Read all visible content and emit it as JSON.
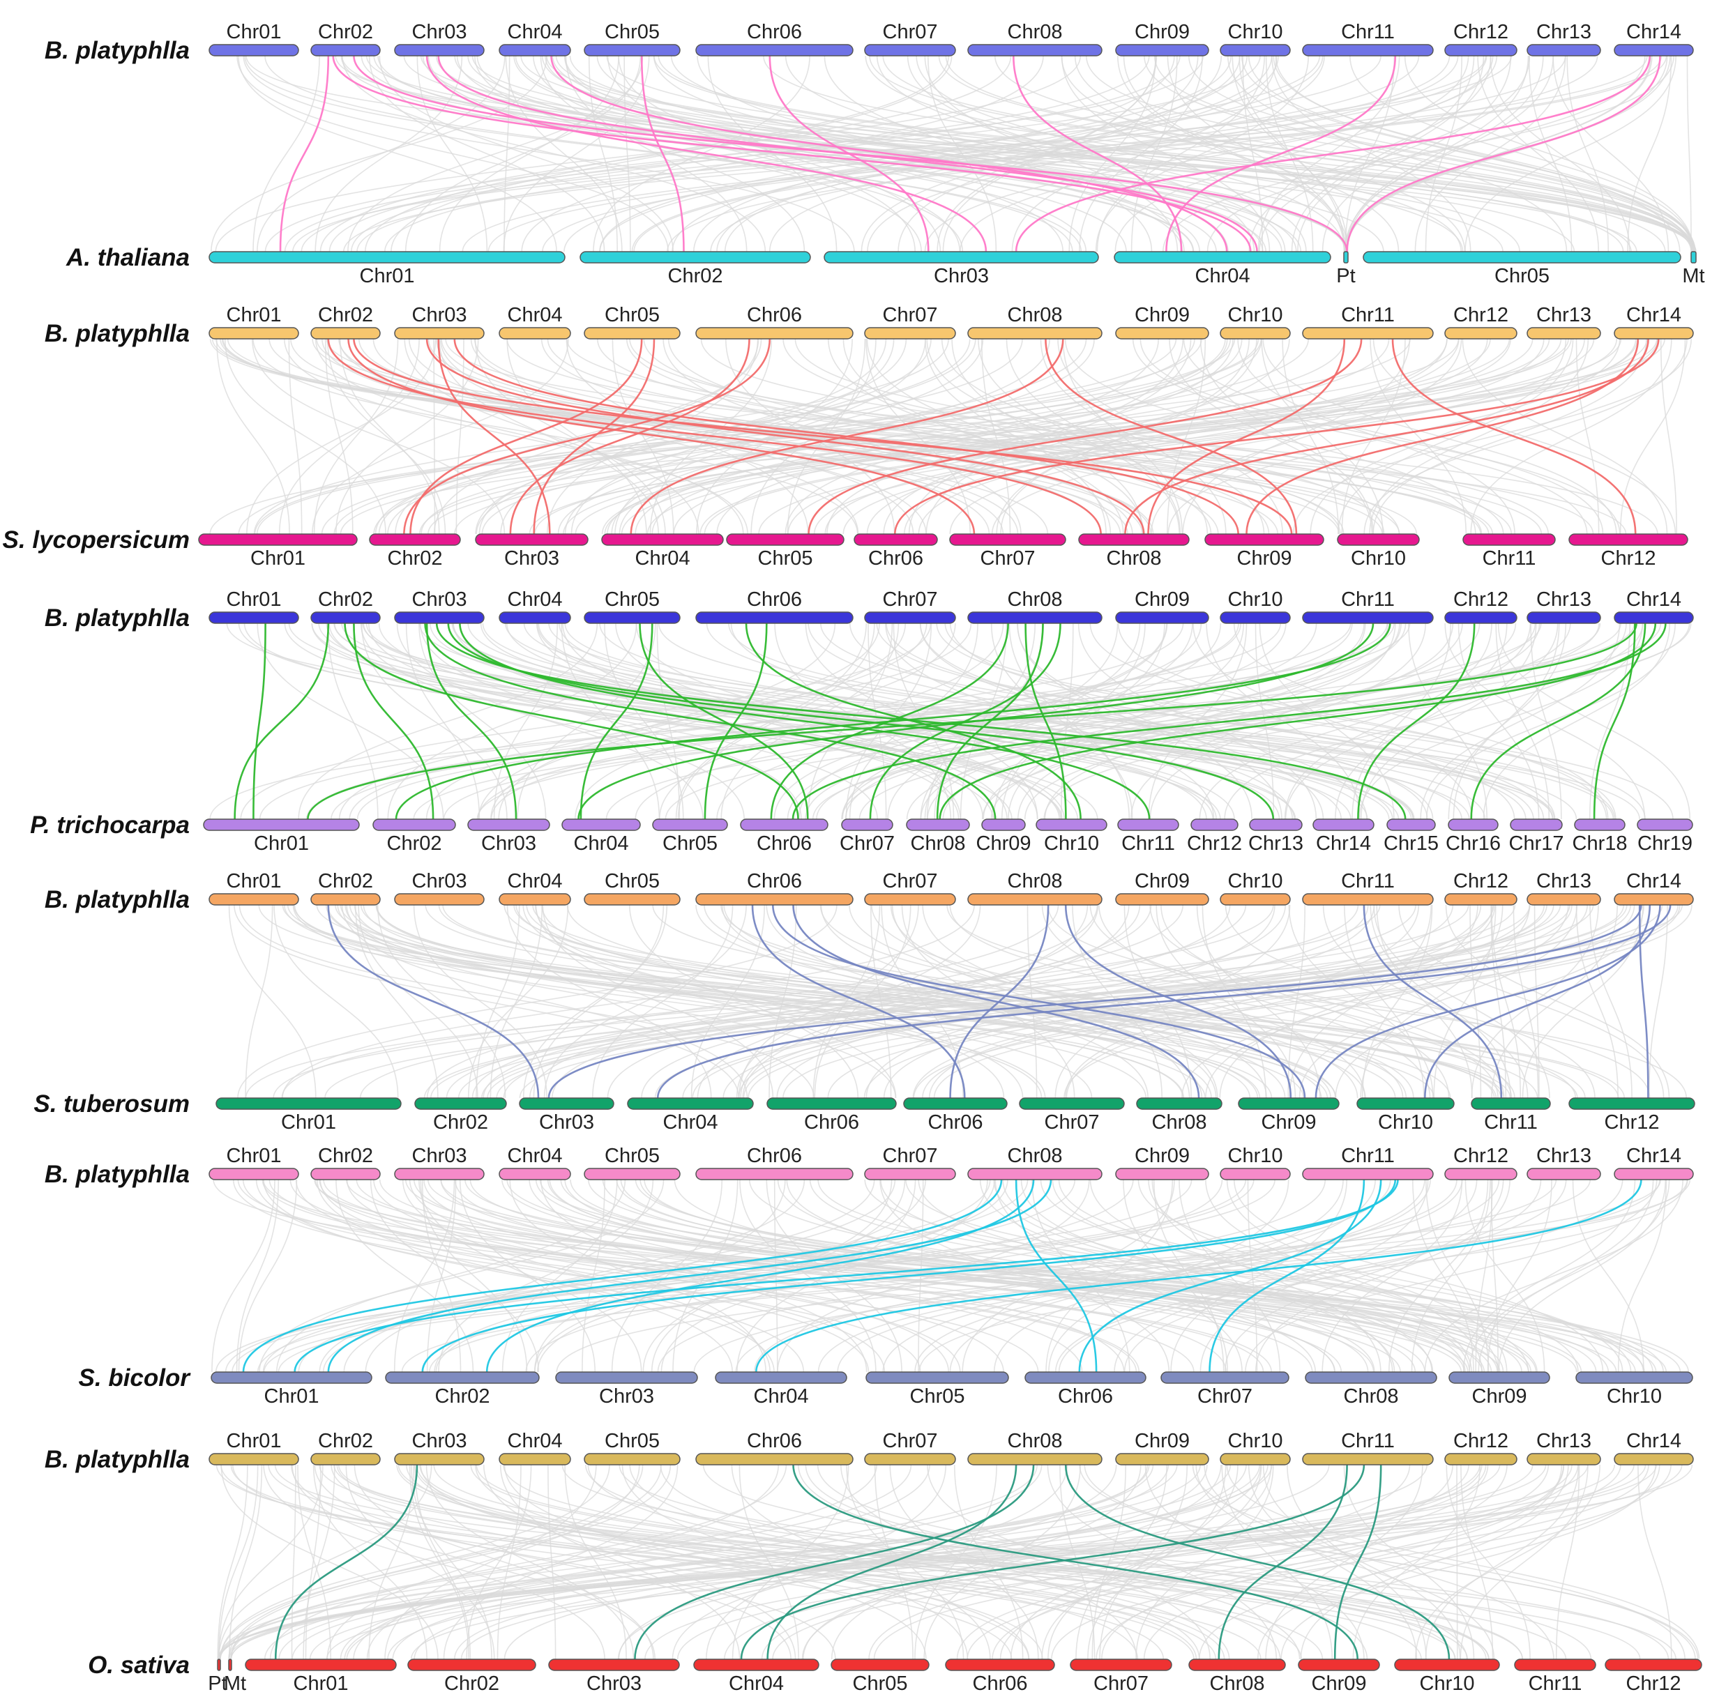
{
  "reference_label": "B. platyphlla",
  "reference_chromosomes": [
    "Chr01",
    "Chr02",
    "Chr03",
    "Chr04",
    "Chr05",
    "Chr06",
    "Chr07",
    "Chr08",
    "Chr09",
    "Chr10",
    "Chr11",
    "Chr12",
    "Chr13",
    "Chr14"
  ],
  "panels": [
    {
      "species": "A. thaliana",
      "ref_color": "#6f73e6",
      "target_color": "#2fd1d9",
      "link_color": "#ff78c8",
      "chromosomes": [
        "Chr01",
        "Chr02",
        "Chr03",
        "Chr04",
        "Pt",
        "Chr05",
        "Mt"
      ],
      "links": [
        [
          1,
          0
        ],
        [
          1,
          4
        ],
        [
          2,
          3
        ],
        [
          2,
          2
        ],
        [
          3,
          3
        ],
        [
          4,
          1
        ],
        [
          5,
          2
        ],
        [
          7,
          3
        ],
        [
          10,
          3
        ],
        [
          13,
          4
        ],
        [
          13,
          2
        ],
        [
          1,
          3
        ]
      ]
    },
    {
      "species": "S. lycopersicum",
      "ref_color": "#f7c66e",
      "target_color": "#e6188f",
      "link_color": "#f26b6b",
      "chromosomes": [
        "Chr01",
        "Chr02",
        "Chr03",
        "Chr04",
        "Chr05",
        "Chr06",
        "Chr07",
        "Chr08",
        "Chr09",
        "Chr10",
        "Chr11",
        "Chr12"
      ],
      "links": [
        [
          1,
          7
        ],
        [
          1,
          8
        ],
        [
          2,
          2
        ],
        [
          2,
          7
        ],
        [
          4,
          2
        ],
        [
          4,
          1
        ],
        [
          5,
          1
        ],
        [
          5,
          2
        ],
        [
          7,
          3
        ],
        [
          7,
          8
        ],
        [
          10,
          4
        ],
        [
          10,
          7
        ],
        [
          10,
          11
        ],
        [
          13,
          5
        ],
        [
          13,
          7
        ],
        [
          13,
          8
        ],
        [
          2,
          8
        ],
        [
          1,
          6
        ]
      ]
    },
    {
      "species": "P. trichocarpa",
      "ref_color": "#3b36d9",
      "target_color": "#b583e6",
      "link_color": "#2db82d",
      "chromosomes": [
        "Chr01",
        "Chr02",
        "Chr03",
        "Chr04",
        "Chr05",
        "Chr06",
        "Chr07",
        "Chr08",
        "Chr09",
        "Chr10",
        "Chr11",
        "Chr12",
        "Chr13",
        "Chr14",
        "Chr15",
        "Chr16",
        "Chr17",
        "Chr18",
        "Chr19"
      ],
      "links": [
        [
          1,
          0
        ],
        [
          1,
          1
        ],
        [
          1,
          5
        ],
        [
          2,
          2
        ],
        [
          2,
          10
        ],
        [
          2,
          12
        ],
        [
          2,
          14
        ],
        [
          2,
          8
        ],
        [
          4,
          3
        ],
        [
          4,
          5
        ],
        [
          5,
          4
        ],
        [
          5,
          9
        ],
        [
          7,
          6
        ],
        [
          7,
          7
        ],
        [
          7,
          9
        ],
        [
          7,
          5
        ],
        [
          10,
          1
        ],
        [
          10,
          3
        ],
        [
          11,
          13
        ],
        [
          13,
          0
        ],
        [
          13,
          5
        ],
        [
          13,
          7
        ],
        [
          13,
          15
        ],
        [
          13,
          17
        ],
        [
          0,
          0
        ]
      ]
    },
    {
      "species": "S. tuberosum",
      "ref_color": "#f5a662",
      "target_color": "#12a36a",
      "link_color": "#7686c2",
      "chromosomes": [
        "Chr01",
        "Chr02",
        "Chr03",
        "Chr04",
        "Chr06",
        "Chr06",
        "Chr07",
        "Chr08",
        "Chr09",
        "Chr10",
        "Chr11",
        "Chr12"
      ],
      "links": [
        [
          1,
          2
        ],
        [
          5,
          7
        ],
        [
          5,
          8
        ],
        [
          5,
          5
        ],
        [
          7,
          8
        ],
        [
          7,
          5
        ],
        [
          10,
          10
        ],
        [
          13,
          2
        ],
        [
          13,
          3
        ],
        [
          13,
          8
        ],
        [
          13,
          9
        ],
        [
          13,
          11
        ]
      ]
    },
    {
      "species": "S. bicolor",
      "ref_color": "#f58ac9",
      "target_color": "#7f8bbf",
      "link_color": "#1fc7e3",
      "chromosomes": [
        "Chr01",
        "Chr02",
        "Chr03",
        "Chr04",
        "Chr05",
        "Chr06",
        "Chr07",
        "Chr08",
        "Chr09",
        "Chr10"
      ],
      "links": [
        [
          7,
          0
        ],
        [
          7,
          0
        ],
        [
          7,
          1
        ],
        [
          7,
          5
        ],
        [
          10,
          0
        ],
        [
          10,
          5
        ],
        [
          10,
          6
        ],
        [
          13,
          3
        ],
        [
          10,
          1
        ]
      ]
    },
    {
      "species": "O. sativa",
      "ref_color": "#d9b95c",
      "target_color": "#ef3232",
      "link_color": "#2a9a80",
      "chromosomes": [
        "Pt",
        "Mt",
        "Chr01",
        "Chr02",
        "Chr03",
        "Chr04",
        "Chr05",
        "Chr06",
        "Chr07",
        "Chr08",
        "Chr09",
        "Chr10",
        "Chr11",
        "Chr12"
      ],
      "links": [
        [
          2,
          2
        ],
        [
          5,
          10
        ],
        [
          7,
          4
        ],
        [
          7,
          5
        ],
        [
          7,
          11
        ],
        [
          10,
          10
        ],
        [
          10,
          5
        ],
        [
          10,
          9
        ]
      ]
    }
  ]
}
